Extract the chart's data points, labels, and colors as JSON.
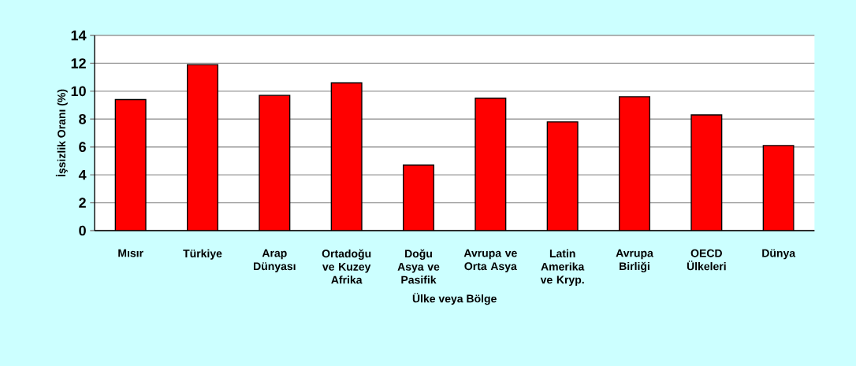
{
  "chart_data": {
    "type": "bar",
    "xlabel": "Ülke veya Bölge",
    "ylabel": "İşsizlik Oranı (%)",
    "categories": [
      "Mısır",
      "Türkiye",
      "Arap Dünyası",
      "Ortadoğu ve Kuzey Afrika",
      "Doğu Asya ve Pasifik",
      "Avrupa ve Orta Asya",
      "Latin Amerika ve Kryp.",
      "Avrupa Birliği",
      "OECD Ülkeleri",
      "Dünya"
    ],
    "values": [
      9.4,
      11.9,
      9.7,
      10.6,
      4.7,
      9.5,
      7.8,
      9.6,
      8.3,
      6.1
    ],
    "color": "#ff0000",
    "ylim": [
      0,
      14
    ],
    "yticks": [
      0,
      2,
      4,
      6,
      8,
      10,
      12,
      14
    ],
    "grid": "y"
  }
}
